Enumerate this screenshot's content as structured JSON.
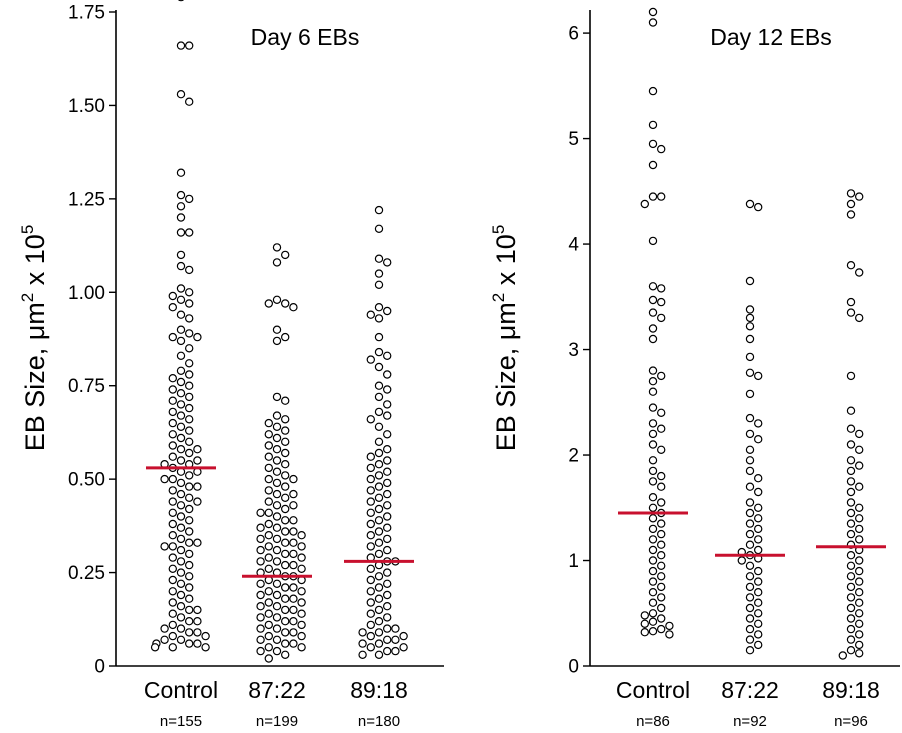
{
  "colors": {
    "points_fill": "#ffffff",
    "points_stroke": "#000000",
    "median": "#c8102e"
  },
  "chart_data": [
    {
      "type": "scatter",
      "title": "Day 6 EBs",
      "ylabel_main": "EB Size, ",
      "ylabel_mu": "μm",
      "ylabel_sq": "2",
      "ylabel_mid": " x 10",
      "ylabel_exp": "5",
      "ylim": [
        0,
        1.75
      ],
      "yticks": [
        0,
        0.25,
        0.5,
        0.75,
        1.0,
        1.25,
        1.5,
        1.75
      ],
      "ytick_labels": [
        "0",
        "0.25",
        "0.50",
        "0.75",
        "1.00",
        "1.25",
        "1.50",
        "1.75"
      ],
      "categories": [
        "Control",
        "87:22",
        "89:18"
      ],
      "n_labels": [
        "n=155",
        "n=199",
        "n=180"
      ],
      "medians": [
        0.53,
        0.24,
        0.28
      ],
      "series": [
        {
          "n": 155,
          "values": [
            1.79,
            1.66,
            1.66,
            1.53,
            1.51,
            1.32,
            1.26,
            1.25,
            1.23,
            1.2,
            1.16,
            1.16,
            1.1,
            1.07,
            1.06,
            1.01,
            1.0,
            0.99,
            0.98,
            0.97,
            0.96,
            0.94,
            0.93,
            0.9,
            0.89,
            0.88,
            0.88,
            0.87,
            0.85,
            0.83,
            0.81,
            0.79,
            0.78,
            0.77,
            0.76,
            0.75,
            0.74,
            0.73,
            0.72,
            0.71,
            0.7,
            0.69,
            0.68,
            0.67,
            0.66,
            0.65,
            0.64,
            0.63,
            0.62,
            0.61,
            0.6,
            0.59,
            0.58,
            0.58,
            0.57,
            0.56,
            0.55,
            0.55,
            0.54,
            0.54,
            0.53,
            0.52,
            0.52,
            0.51,
            0.5,
            0.5,
            0.49,
            0.48,
            0.48,
            0.47,
            0.46,
            0.45,
            0.44,
            0.44,
            0.43,
            0.42,
            0.41,
            0.4,
            0.39,
            0.38,
            0.37,
            0.36,
            0.35,
            0.34,
            0.33,
            0.33,
            0.32,
            0.32,
            0.31,
            0.3,
            0.29,
            0.28,
            0.27,
            0.26,
            0.25,
            0.24,
            0.23,
            0.22,
            0.21,
            0.2,
            0.19,
            0.18,
            0.17,
            0.16,
            0.15,
            0.15,
            0.14,
            0.13,
            0.12,
            0.12,
            0.11,
            0.1,
            0.1,
            0.09,
            0.09,
            0.08,
            0.08,
            0.07,
            0.07,
            0.06,
            0.06,
            0.06,
            0.05,
            0.05,
            0.05
          ]
        },
        {
          "n": 199,
          "values": [
            1.12,
            1.1,
            1.08,
            0.98,
            0.97,
            0.97,
            0.96,
            0.9,
            0.88,
            0.87,
            0.72,
            0.71,
            0.67,
            0.66,
            0.65,
            0.64,
            0.63,
            0.62,
            0.61,
            0.6,
            0.59,
            0.58,
            0.57,
            0.56,
            0.55,
            0.54,
            0.53,
            0.52,
            0.51,
            0.5,
            0.5,
            0.49,
            0.48,
            0.47,
            0.46,
            0.46,
            0.45,
            0.44,
            0.43,
            0.43,
            0.42,
            0.41,
            0.41,
            0.4,
            0.39,
            0.39,
            0.38,
            0.37,
            0.37,
            0.36,
            0.36,
            0.35,
            0.35,
            0.34,
            0.34,
            0.33,
            0.33,
            0.32,
            0.32,
            0.31,
            0.31,
            0.3,
            0.3,
            0.29,
            0.29,
            0.28,
            0.28,
            0.27,
            0.27,
            0.26,
            0.26,
            0.25,
            0.25,
            0.24,
            0.24,
            0.23,
            0.23,
            0.22,
            0.22,
            0.21,
            0.21,
            0.2,
            0.2,
            0.19,
            0.19,
            0.18,
            0.18,
            0.17,
            0.17,
            0.16,
            0.16,
            0.15,
            0.15,
            0.14,
            0.14,
            0.13,
            0.13,
            0.12,
            0.12,
            0.11,
            0.11,
            0.1,
            0.1,
            0.09,
            0.09,
            0.08,
            0.08,
            0.07,
            0.07,
            0.06,
            0.06,
            0.05,
            0.05,
            0.04,
            0.04,
            0.03,
            0.02
          ]
        },
        {
          "n": 180,
          "values": [
            1.22,
            1.17,
            1.09,
            1.08,
            1.05,
            1.02,
            0.96,
            0.95,
            0.94,
            0.93,
            0.88,
            0.84,
            0.83,
            0.82,
            0.8,
            0.78,
            0.75,
            0.74,
            0.72,
            0.7,
            0.68,
            0.67,
            0.66,
            0.64,
            0.62,
            0.6,
            0.58,
            0.57,
            0.56,
            0.55,
            0.54,
            0.53,
            0.52,
            0.51,
            0.5,
            0.49,
            0.48,
            0.47,
            0.46,
            0.45,
            0.44,
            0.43,
            0.42,
            0.41,
            0.4,
            0.39,
            0.38,
            0.37,
            0.36,
            0.35,
            0.34,
            0.33,
            0.32,
            0.31,
            0.3,
            0.29,
            0.28,
            0.28,
            0.27,
            0.26,
            0.25,
            0.24,
            0.23,
            0.22,
            0.21,
            0.2,
            0.19,
            0.18,
            0.17,
            0.16,
            0.15,
            0.14,
            0.13,
            0.12,
            0.11,
            0.1,
            0.1,
            0.09,
            0.09,
            0.08,
            0.08,
            0.07,
            0.07,
            0.06,
            0.06,
            0.05,
            0.05,
            0.04,
            0.04,
            0.03,
            0.03
          ]
        }
      ]
    },
    {
      "type": "scatter",
      "title": "Day 12 EBs",
      "ylabel_main": "EB Size, ",
      "ylabel_mu": "μm",
      "ylabel_sq": "2",
      "ylabel_mid": " x 10",
      "ylabel_exp": "5",
      "ylim": [
        0,
        6.2
      ],
      "yticks": [
        0,
        1,
        2,
        3,
        4,
        5,
        6
      ],
      "ytick_labels": [
        "0",
        "1",
        "2",
        "3",
        "4",
        "5",
        "6"
      ],
      "categories": [
        "Control",
        "87:22",
        "89:18"
      ],
      "n_labels": [
        "n=86",
        "n=92",
        "n=96"
      ],
      "medians": [
        1.45,
        1.05,
        1.13
      ],
      "series": [
        {
          "n": 86,
          "values": [
            6.2,
            6.1,
            5.45,
            5.13,
            4.95,
            4.9,
            4.75,
            4.45,
            4.45,
            4.38,
            4.03,
            3.6,
            3.58,
            3.47,
            3.45,
            3.35,
            3.3,
            3.2,
            3.1,
            2.8,
            2.75,
            2.7,
            2.6,
            2.45,
            2.4,
            2.3,
            2.25,
            2.2,
            2.1,
            2.05,
            1.95,
            1.85,
            1.8,
            1.75,
            1.7,
            1.6,
            1.55,
            1.5,
            1.45,
            1.4,
            1.35,
            1.3,
            1.25,
            1.2,
            1.15,
            1.1,
            1.05,
            1.0,
            0.95,
            0.9,
            0.85,
            0.8,
            0.75,
            0.7,
            0.65,
            0.6,
            0.55,
            0.5,
            0.48,
            0.45,
            0.42,
            0.4,
            0.38,
            0.35,
            0.33,
            0.32,
            0.3
          ]
        },
        {
          "n": 92,
          "values": [
            4.38,
            4.35,
            3.65,
            3.38,
            3.3,
            3.22,
            3.1,
            2.93,
            2.78,
            2.75,
            2.58,
            2.35,
            2.3,
            2.2,
            2.15,
            2.05,
            1.95,
            1.85,
            1.78,
            1.7,
            1.65,
            1.55,
            1.5,
            1.45,
            1.4,
            1.35,
            1.3,
            1.25,
            1.2,
            1.15,
            1.1,
            1.08,
            1.05,
            1.02,
            1.0,
            0.95,
            0.9,
            0.85,
            0.8,
            0.75,
            0.7,
            0.65,
            0.6,
            0.55,
            0.5,
            0.45,
            0.4,
            0.35,
            0.3,
            0.25,
            0.2,
            0.15
          ]
        },
        {
          "n": 96,
          "values": [
            4.48,
            4.45,
            4.38,
            4.28,
            3.8,
            3.73,
            3.45,
            3.35,
            3.3,
            2.75,
            2.42,
            2.25,
            2.2,
            2.1,
            2.05,
            1.95,
            1.9,
            1.85,
            1.75,
            1.7,
            1.65,
            1.55,
            1.5,
            1.45,
            1.4,
            1.35,
            1.3,
            1.25,
            1.2,
            1.15,
            1.1,
            1.05,
            1.0,
            0.95,
            0.9,
            0.85,
            0.8,
            0.75,
            0.7,
            0.65,
            0.6,
            0.55,
            0.5,
            0.45,
            0.4,
            0.35,
            0.3,
            0.25,
            0.2,
            0.15,
            0.12,
            0.1
          ]
        }
      ]
    }
  ]
}
